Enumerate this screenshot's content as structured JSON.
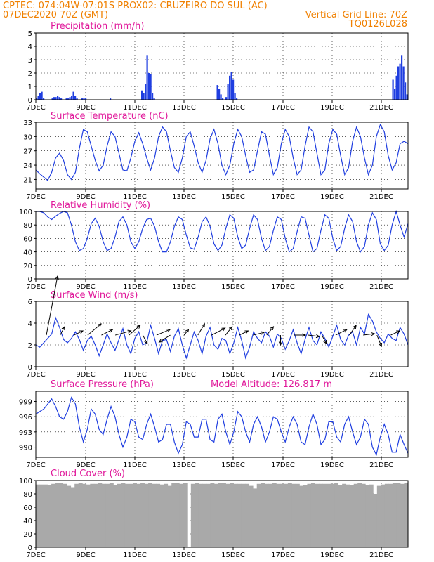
{
  "header": {
    "line1": "CPTEC:   074:04W-07:01S   PROX02: CRUZEIRO DO SUL (AC)",
    "line2_left": "07DEC2020 70Z (GMT)",
    "line2_right": "Vertical Grid Line: 70Z",
    "line3_right": "TQ0126L028"
  },
  "colors": {
    "header": "#f08000",
    "title": "#e0189a",
    "series": "#1f3ee0",
    "cloud": "#a9a9a9"
  },
  "x_tick_labels": [
    "7DEC",
    "9DEC",
    "11DEC",
    "13DEC",
    "15DEC",
    "17DEC",
    "19DEC",
    "21DEC"
  ],
  "chart_data": [
    {
      "type": "bar",
      "title": "Precipitation (mm/h)",
      "ylim": [
        0,
        5
      ],
      "yticks": [
        "0",
        "1",
        "2",
        "3",
        "4",
        "5"
      ],
      "series": [
        {
          "values": [
            0.1,
            0.3,
            0.5,
            0.6,
            0.1,
            0,
            0,
            0,
            0,
            0.1,
            0.2,
            0.2,
            0.3,
            0.2,
            0.1,
            0,
            0,
            0.1,
            0.1,
            0.2,
            0.3,
            0.6,
            0.3,
            0.1,
            0,
            0,
            0.1,
            0.1,
            0.1,
            0,
            0,
            0,
            0,
            0,
            0,
            0,
            0,
            0,
            0,
            0,
            0,
            0,
            0.1,
            0,
            0,
            0,
            0,
            0,
            0,
            0,
            0,
            0,
            0,
            0,
            0,
            0,
            0,
            0,
            0,
            0,
            0.7,
            0.5,
            1.2,
            3.3,
            2.0,
            1.9,
            0.5,
            0.1,
            0,
            0,
            0,
            0,
            0,
            0,
            0,
            0,
            0,
            0,
            0,
            0,
            0,
            0,
            0,
            0,
            0,
            0,
            0,
            0,
            0,
            0,
            0,
            0,
            0,
            0,
            0,
            0,
            0,
            0,
            0,
            0,
            0,
            0,
            0,
            1.1,
            0.8,
            0.4,
            0.1,
            0,
            0.2,
            1.2,
            1.8,
            2.1,
            1.5,
            0.5,
            0.1,
            0,
            0,
            0,
            0,
            0,
            0,
            0,
            0,
            0,
            0,
            0,
            0,
            0,
            0,
            0,
            0,
            0,
            0,
            0,
            0,
            0,
            0,
            0,
            0,
            0,
            0,
            0,
            0,
            0,
            0,
            0,
            0,
            0,
            0,
            0,
            0,
            0,
            0,
            0,
            0,
            0,
            0,
            0,
            0,
            0,
            0,
            0,
            0,
            0,
            0,
            0,
            0,
            0,
            0,
            0,
            0,
            0,
            0,
            0,
            0,
            0,
            0,
            0,
            0,
            0,
            0,
            0,
            0,
            0,
            0,
            0,
            0,
            0,
            0,
            0,
            0,
            0,
            0,
            0,
            0,
            0,
            0,
            0,
            0,
            0,
            0,
            0,
            0,
            1.5,
            0.8,
            1.8,
            2.5,
            2.7,
            3.3,
            2.5,
            1.3,
            0.4
          ]
        }
      ]
    },
    {
      "type": "line",
      "title": "Surface Temperature (nC)",
      "ylim": [
        19,
        33
      ],
      "yticks": [
        "21",
        "24",
        "27",
        "30",
        "33"
      ],
      "series": [
        {
          "values": [
            23.0,
            22.2,
            21.5,
            20.8,
            22.5,
            25.5,
            26.5,
            25.0,
            22.0,
            21.0,
            22.5,
            27.5,
            31.5,
            31.0,
            28.0,
            25.0,
            22.8,
            24.0,
            28.0,
            31.0,
            30.0,
            26.5,
            23.0,
            22.8,
            25.5,
            29.0,
            30.8,
            28.5,
            25.5,
            23.0,
            25.5,
            30.0,
            32.0,
            31.0,
            27.0,
            23.5,
            22.5,
            25.5,
            30.0,
            31.0,
            28.0,
            24.5,
            22.5,
            25.0,
            29.5,
            31.5,
            28.5,
            24.0,
            22.0,
            24.0,
            28.5,
            31.5,
            30.0,
            26.0,
            22.5,
            23.0,
            27.0,
            31.0,
            30.5,
            26.0,
            22.0,
            23.5,
            28.5,
            31.5,
            30.0,
            25.5,
            22.0,
            23.0,
            28.0,
            32.0,
            31.0,
            26.5,
            22.0,
            23.0,
            28.5,
            31.5,
            30.5,
            26.0,
            22.0,
            23.5,
            29.0,
            32.0,
            30.0,
            25.5,
            22.0,
            24.0,
            30.0,
            32.5,
            31.0,
            26.0,
            23.0,
            24.5,
            28.5,
            29.0,
            28.5
          ]
        }
      ]
    },
    {
      "type": "line",
      "title": "Relative Humidity (%)",
      "ylim": [
        0,
        100
      ],
      "yticks": [
        "0",
        "20",
        "40",
        "60",
        "80",
        "100"
      ],
      "series": [
        {
          "values": [
            100,
            100,
            98,
            92,
            88,
            93,
            97,
            100,
            98,
            80,
            55,
            42,
            45,
            60,
            82,
            90,
            78,
            55,
            42,
            45,
            62,
            85,
            92,
            80,
            55,
            45,
            55,
            75,
            88,
            90,
            78,
            55,
            40,
            40,
            55,
            78,
            92,
            88,
            65,
            46,
            44,
            62,
            85,
            92,
            78,
            52,
            42,
            50,
            75,
            95,
            90,
            62,
            45,
            50,
            75,
            95,
            88,
            60,
            42,
            48,
            72,
            92,
            88,
            60,
            40,
            45,
            70,
            92,
            90,
            65,
            40,
            45,
            72,
            95,
            90,
            60,
            42,
            48,
            75,
            95,
            85,
            55,
            40,
            48,
            80,
            98,
            88,
            52,
            42,
            50,
            80,
            100,
            80,
            62,
            82
          ]
        }
      ]
    },
    {
      "type": "line",
      "title": "Surface Wind (m/s)",
      "ylim": [
        0,
        6
      ],
      "yticks": [
        "0",
        "2",
        "4",
        "6"
      ],
      "series": [
        {
          "values": [
            2.0,
            1.8,
            2.2,
            2.6,
            3.0,
            4.5,
            3.6,
            2.5,
            2.2,
            2.6,
            3.2,
            2.5,
            1.5,
            2.4,
            2.8,
            2.0,
            1.0,
            2.0,
            3.0,
            2.2,
            1.5,
            2.5,
            3.5,
            2.0,
            1.2,
            2.6,
            3.2,
            2.0,
            2.2,
            3.8,
            2.6,
            1.2,
            2.4,
            2.5,
            1.4,
            2.8,
            3.5,
            2.0,
            0.8,
            2.0,
            3.2,
            2.4,
            1.2,
            2.8,
            3.6,
            2.0,
            1.6,
            2.6,
            2.4,
            1.2,
            2.2,
            3.6,
            2.4,
            0.8,
            1.8,
            3.2,
            2.6,
            2.2,
            3.2,
            2.8,
            1.8,
            3.0,
            2.6,
            1.6,
            2.4,
            3.4,
            2.2,
            1.2,
            2.5,
            3.6,
            2.4,
            2.0,
            3.2,
            2.6,
            1.8,
            2.8,
            3.8,
            2.5,
            2.0,
            2.9,
            3.2,
            2.0,
            3.6,
            3.0,
            4.8,
            4.2,
            3.2,
            2.6,
            2.2,
            3.0,
            2.6,
            2.4,
            3.6,
            3.0,
            2.0
          ]
        }
      ],
      "arrows": [
        [
          0.5,
          4.2
        ],
        [
          0.2,
          0.6
        ],
        [
          0.4,
          0.3
        ],
        [
          0.6,
          0.8
        ],
        [
          0.5,
          0.4
        ],
        [
          0.7,
          0.3
        ],
        [
          0.5,
          0.7
        ],
        [
          0.2,
          -0.6
        ],
        [
          0.6,
          0.4
        ],
        [
          -0.5,
          -0.5
        ],
        [
          0.2,
          0.4
        ],
        [
          0.3,
          0.8
        ],
        [
          0.6,
          0.5
        ],
        [
          0.3,
          0.6
        ],
        [
          0.4,
          0.3
        ],
        [
          0.5,
          0.2
        ],
        [
          0.3,
          0.6
        ],
        [
          0.0,
          -0.7
        ],
        [
          0.5,
          0.0
        ],
        [
          0.5,
          -0.1
        ],
        [
          0.2,
          -0.6
        ],
        [
          0.5,
          0.4
        ],
        [
          0.3,
          0.7
        ],
        [
          0.5,
          0.1
        ],
        [
          0.2,
          -0.8
        ],
        [
          0.4,
          0.3
        ]
      ]
    },
    {
      "type": "line",
      "title": "Surface Pressure (hPa)",
      "annotation": "Model Altitude: 126.817 m",
      "ylim": [
        988,
        1001
      ],
      "yticks": [
        "990",
        "993",
        "996",
        "999"
      ],
      "series": [
        {
          "values": [
            996.5,
            997.0,
            997.5,
            998.5,
            999.5,
            998.0,
            996.0,
            995.5,
            997.0,
            999.8,
            998.5,
            994.0,
            991.0,
            993.5,
            997.5,
            996.5,
            993.5,
            992.5,
            995.5,
            998.0,
            996.0,
            992.5,
            990.0,
            992.0,
            995.5,
            995.0,
            992.0,
            991.5,
            994.5,
            996.5,
            994.0,
            991.0,
            991.5,
            994.5,
            994.5,
            991.0,
            988.8,
            990.5,
            995.0,
            994.5,
            992.0,
            992.0,
            995.5,
            995.5,
            991.5,
            991.0,
            995.5,
            996.5,
            993.0,
            990.5,
            993.0,
            997.0,
            996.0,
            993.0,
            991.0,
            994.5,
            996.0,
            994.0,
            991.0,
            993.0,
            996.0,
            995.5,
            993.0,
            991.0,
            994.0,
            996.0,
            994.5,
            991.0,
            990.5,
            994.0,
            996.5,
            994.5,
            990.5,
            991.5,
            995.0,
            995.0,
            992.0,
            991.0,
            994.5,
            996.0,
            993.0,
            990.5,
            992.0,
            995.5,
            994.5,
            990.0,
            988.5,
            992.0,
            994.5,
            992.5,
            989.0,
            989.0,
            992.5,
            990.5,
            988.8
          ]
        }
      ]
    },
    {
      "type": "area",
      "title": "Cloud Cover (%)",
      "ylim": [
        0,
        100
      ],
      "yticks": [
        "0",
        "20",
        "40",
        "60",
        "80",
        "100"
      ],
      "series": [
        {
          "values": [
            94,
            94,
            94,
            93,
            95,
            96,
            96,
            95,
            92,
            90,
            95,
            96,
            95,
            94,
            95,
            95,
            96,
            95,
            95,
            96,
            93,
            95,
            96,
            95,
            95,
            96,
            95,
            96,
            95,
            96,
            95,
            95,
            94,
            95,
            92,
            96,
            96,
            95,
            96,
            0,
            95,
            96,
            95,
            95,
            95,
            96,
            95,
            96,
            96,
            95,
            96,
            95,
            95,
            95,
            95,
            92,
            88,
            95,
            96,
            95,
            95,
            96,
            95,
            95,
            95,
            96,
            95,
            95,
            92,
            93,
            95,
            96,
            95,
            95,
            95,
            95,
            95,
            96,
            93,
            95,
            94,
            93,
            95,
            96,
            95,
            93,
            94,
            80,
            92,
            94,
            95,
            95,
            96,
            96,
            95,
            96
          ]
        }
      ]
    }
  ]
}
